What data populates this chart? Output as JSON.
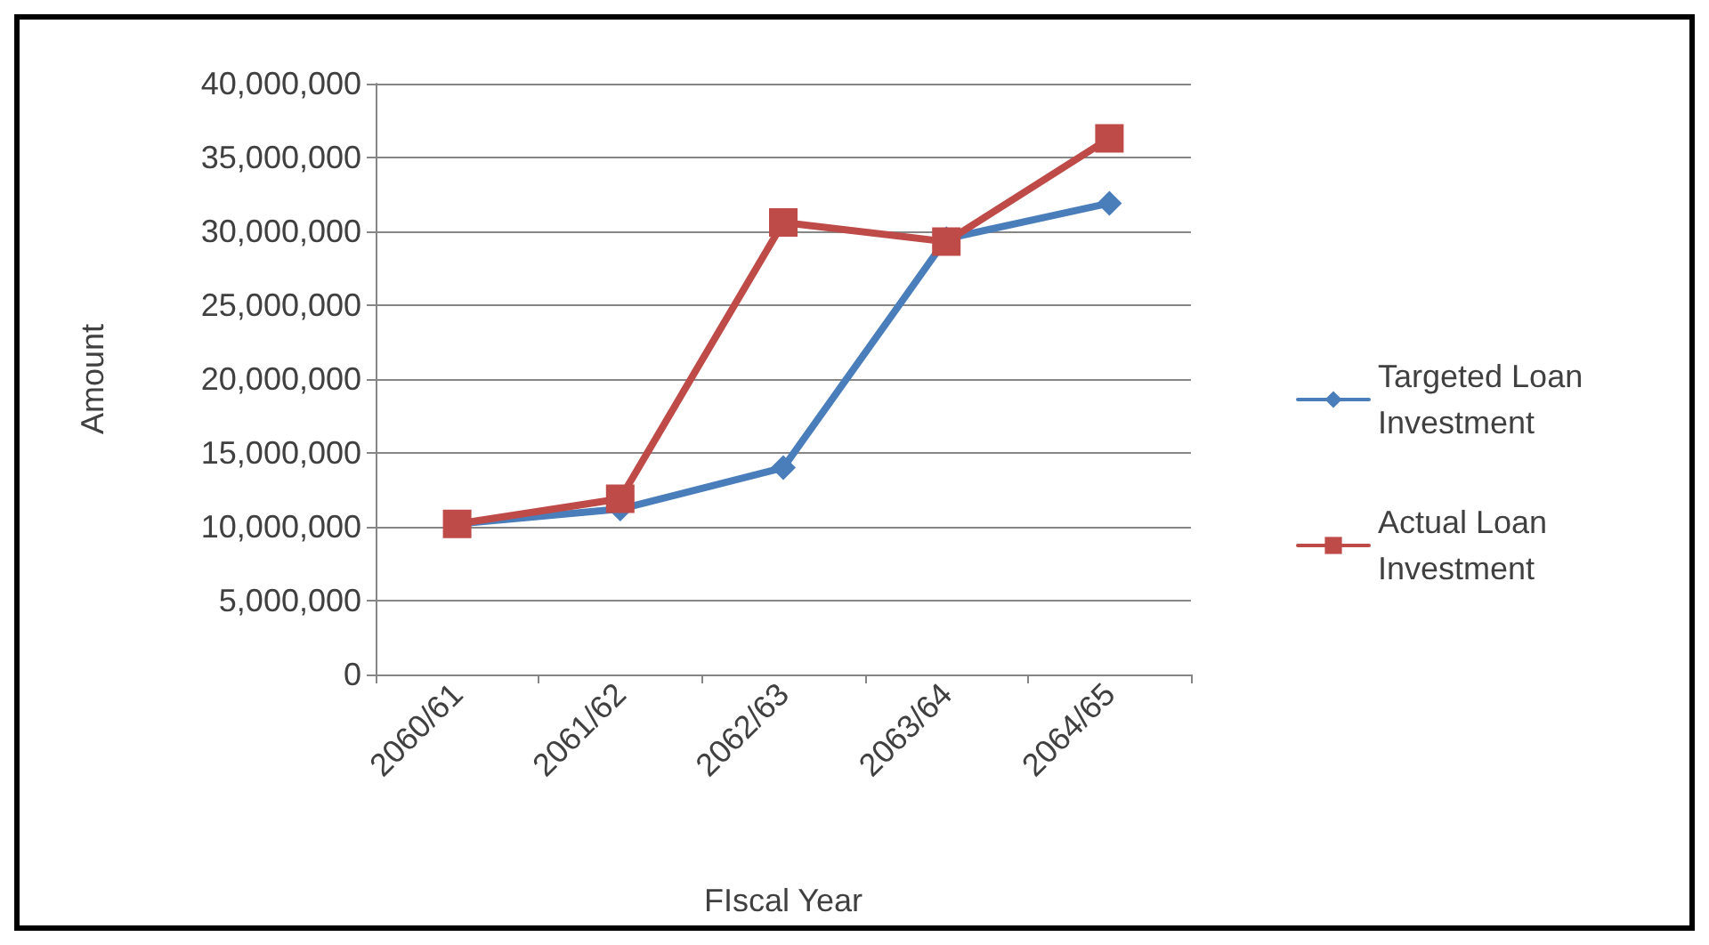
{
  "chart_data": {
    "type": "line",
    "xlabel": "FIscal Year",
    "ylabel": "Amount",
    "categories": [
      "2060/61",
      "2061/62",
      "2062/63",
      "2063/64",
      "2064/65"
    ],
    "series": [
      {
        "name": "Targeted Loan Investment",
        "color": "#4a7ebb",
        "marker": "diamond",
        "values": [
          10200000,
          11200000,
          14000000,
          29500000,
          31900000
        ]
      },
      {
        "name": "Actual Loan Investment",
        "color": "#be4b48",
        "marker": "square",
        "values": [
          10200000,
          11900000,
          30600000,
          29300000,
          36300000
        ]
      }
    ],
    "ylim": [
      0,
      40000000
    ],
    "yticks": [
      0,
      {
        "value": 5000000,
        "label": "5,000,000"
      },
      {
        "value": 10000000,
        "label": "10,000,000"
      },
      {
        "value": 15000000,
        "label": "15,000,000"
      },
      {
        "value": 20000000,
        "label": "20,000,000"
      },
      {
        "value": 25000000,
        "label": "25,000,000"
      },
      {
        "value": 30000000,
        "label": "30,000,000"
      },
      {
        "value": 35000000,
        "label": "35,000,000"
      },
      {
        "value": 40000000,
        "label": "40,000,000"
      }
    ],
    "grid": "y",
    "legend": "right",
    "line_style": "solid"
  }
}
